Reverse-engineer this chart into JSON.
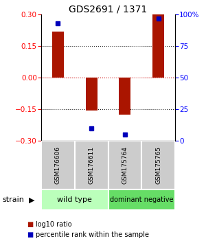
{
  "title": "GDS2691 / 1371",
  "samples": [
    "GSM176606",
    "GSM176611",
    "GSM175764",
    "GSM175765"
  ],
  "log10_ratio": [
    0.22,
    -0.155,
    -0.175,
    0.3
  ],
  "percentile_rank": [
    93,
    10,
    5,
    97
  ],
  "ylim_left": [
    -0.3,
    0.3
  ],
  "ylim_right": [
    0,
    100
  ],
  "yticks_left": [
    -0.3,
    -0.15,
    0,
    0.15,
    0.3
  ],
  "yticks_right": [
    0,
    25,
    50,
    75,
    100
  ],
  "ytick_labels_right": [
    "0",
    "25",
    "50",
    "75",
    "100%"
  ],
  "bar_color": "#aa1500",
  "dot_color": "#0000bb",
  "zero_line_color": "#cc0000",
  "group1_label": "wild type",
  "group2_label": "dominant negative",
  "group1_color": "#bbffbb",
  "group2_color": "#66dd66",
  "strain_label": "strain",
  "legend_red_label": "log10 ratio",
  "legend_blue_label": "percentile rank within the sample",
  "background_color": "#ffffff",
  "sample_box_color": "#cccccc",
  "bar_width": 0.35,
  "figsize": [
    3.0,
    3.54
  ],
  "dpi": 100
}
